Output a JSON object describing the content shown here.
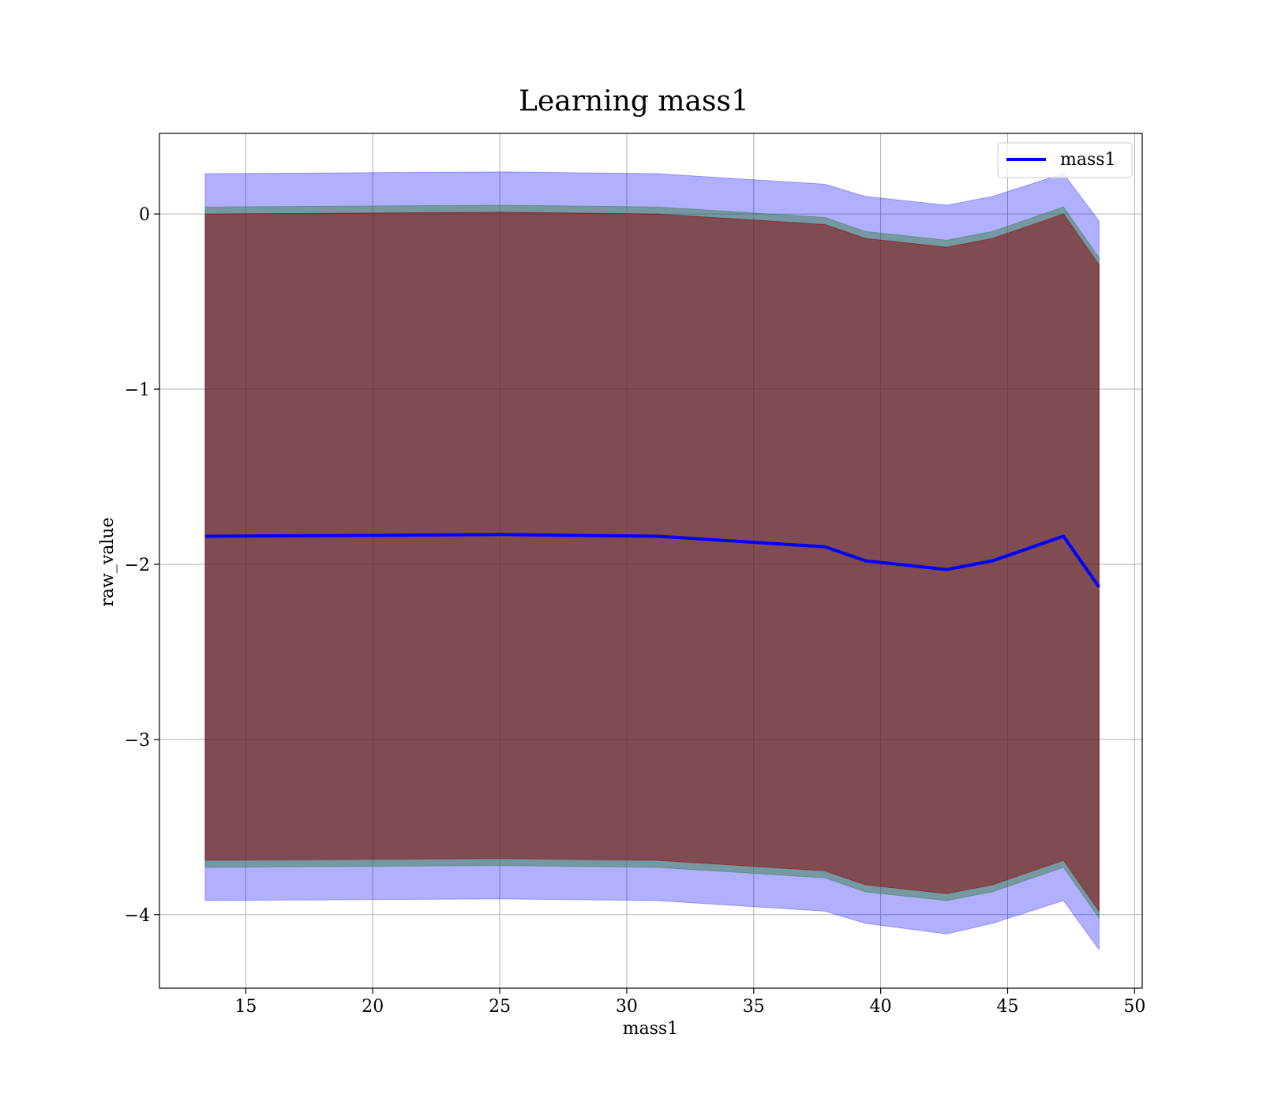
{
  "chart_data": {
    "type": "line",
    "title": "Learning mass1",
    "xlabel": "mass1",
    "ylabel": "raw_value",
    "xlim": [
      11.6,
      50.3
    ],
    "ylim": [
      -4.42,
      0.46
    ],
    "xticks": [
      15,
      20,
      25,
      30,
      35,
      40,
      45,
      50
    ],
    "yticks": [
      0,
      -1,
      -2,
      -3,
      -4
    ],
    "ytick_labels": [
      "0",
      "−1",
      "−2",
      "−3",
      "−4"
    ],
    "grid": true,
    "legend_position": "top-right",
    "x": [
      13.4,
      25.0,
      31.2,
      37.8,
      39.4,
      42.6,
      44.4,
      47.2,
      48.6
    ],
    "series": [
      {
        "name": "mass1",
        "color": "#0000ff",
        "values": [
          -1.84,
          -1.83,
          -1.84,
          -1.9,
          -1.98,
          -2.03,
          -1.98,
          -1.84,
          -2.13
        ]
      }
    ],
    "bands": [
      {
        "role": "outer",
        "color": "#0000ff",
        "opacity": 0.31,
        "upper": [
          0.23,
          0.24,
          0.23,
          0.17,
          0.1,
          0.05,
          0.1,
          0.23,
          -0.04
        ],
        "lower": [
          -3.92,
          -3.91,
          -3.92,
          -3.98,
          -4.05,
          -4.11,
          -4.05,
          -3.92,
          -4.2
        ]
      },
      {
        "role": "middle",
        "color": "#2e7d32",
        "opacity": 0.45,
        "upper": [
          0.04,
          0.05,
          0.04,
          -0.02,
          -0.1,
          -0.15,
          -0.1,
          0.04,
          -0.25
        ],
        "lower": [
          -3.73,
          -3.72,
          -3.73,
          -3.79,
          -3.87,
          -3.92,
          -3.87,
          -3.73,
          -4.02
        ]
      },
      {
        "role": "inner",
        "color": "#8b0000",
        "opacity": 0.5,
        "upper": [
          0.0,
          0.01,
          0.0,
          -0.06,
          -0.14,
          -0.19,
          -0.14,
          0.0,
          -0.29
        ],
        "lower": [
          -3.69,
          -3.68,
          -3.69,
          -3.75,
          -3.83,
          -3.88,
          -3.83,
          -3.69,
          -3.98
        ]
      }
    ]
  }
}
